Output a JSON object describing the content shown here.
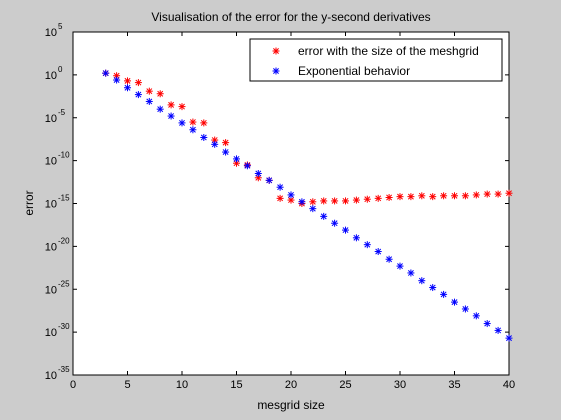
{
  "chart_data": {
    "type": "scatter",
    "title": "Visualisation of the error for the y-second derivatives",
    "xlabel": "mesgrid size",
    "ylabel": "error",
    "xlim": [
      0,
      40
    ],
    "ylim_exponent": [
      -35,
      5
    ],
    "yscale": "log",
    "x_ticks": [
      "0",
      "5",
      "10",
      "15",
      "20",
      "25",
      "30",
      "35",
      "40"
    ],
    "y_tick_base": "10",
    "y_tick_exponents": [
      "5",
      "0",
      "-5",
      "-10",
      "-15",
      "-20",
      "-25",
      "-30",
      "-35"
    ],
    "grid": false,
    "legend_position": "top-right",
    "series": [
      {
        "name": "error with the size of the meshgrid",
        "color": "#ff0000",
        "marker": "asterisk",
        "x": [
          3,
          4,
          5,
          6,
          7,
          8,
          9,
          10,
          11,
          12,
          13,
          14,
          15,
          16,
          17,
          18,
          19,
          20,
          21,
          22,
          23,
          24,
          25,
          26,
          27,
          28,
          29,
          30,
          31,
          32,
          33,
          34,
          35,
          36,
          37,
          38,
          39,
          40
        ],
        "log10_y": [
          0.2,
          -0.1,
          -0.7,
          -0.9,
          -1.9,
          -2.2,
          -3.5,
          -3.7,
          -5.5,
          -5.6,
          -7.6,
          -7.9,
          -10.3,
          -10.5,
          -12.0,
          -12.3,
          -14.4,
          -14.6,
          -15.0,
          -14.8,
          -14.7,
          -14.7,
          -14.7,
          -14.6,
          -14.5,
          -14.4,
          -14.3,
          -14.2,
          -14.2,
          -14.1,
          -14.2,
          -14.1,
          -14.1,
          -14.1,
          -14.0,
          -13.9,
          -13.9,
          -13.8
        ]
      },
      {
        "name": "Exponential behavior",
        "color": "#0000ff",
        "marker": "asterisk",
        "x": [
          3,
          4,
          5,
          6,
          7,
          8,
          9,
          10,
          11,
          12,
          13,
          14,
          15,
          16,
          17,
          18,
          19,
          20,
          21,
          22,
          23,
          24,
          25,
          26,
          27,
          28,
          29,
          30,
          31,
          32,
          33,
          34,
          35,
          36,
          37,
          38,
          39,
          40
        ],
        "log10_y": [
          0.2,
          -0.6,
          -1.5,
          -2.3,
          -3.1,
          -4.0,
          -4.8,
          -5.6,
          -6.4,
          -7.3,
          -8.1,
          -9.0,
          -9.8,
          -10.6,
          -11.5,
          -12.3,
          -13.1,
          -14.0,
          -14.8,
          -15.6,
          -16.5,
          -17.3,
          -18.1,
          -19.0,
          -19.8,
          -20.6,
          -21.5,
          -22.3,
          -23.1,
          -24.0,
          -24.8,
          -25.6,
          -26.5,
          -27.3,
          -28.1,
          -29.0,
          -29.8,
          -30.7
        ]
      }
    ]
  }
}
